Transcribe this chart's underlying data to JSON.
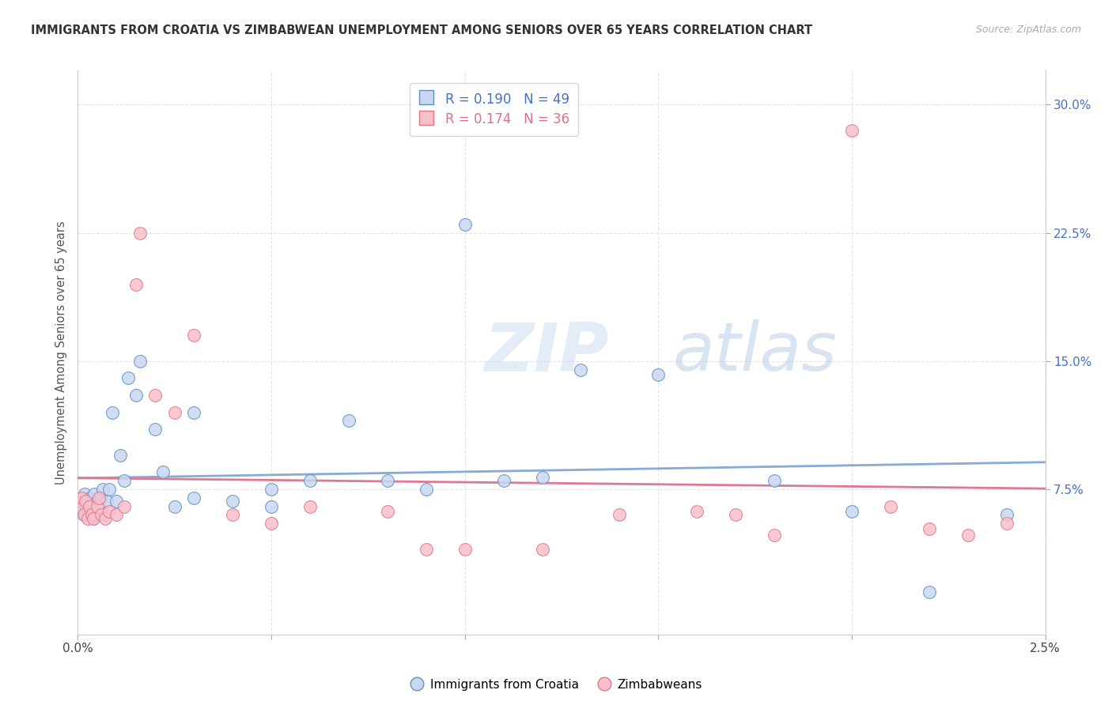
{
  "title": "IMMIGRANTS FROM CROATIA VS ZIMBABWEAN UNEMPLOYMENT AMONG SENIORS OVER 65 YEARS CORRELATION CHART",
  "source": "Source: ZipAtlas.com",
  "ylabel": "Unemployment Among Seniors over 65 years",
  "legend_label_1": "Immigrants from Croatia",
  "legend_label_2": "Zimbabweans",
  "legend_r1": "0.190",
  "legend_n1": "49",
  "legend_r2": "0.174",
  "legend_n2": "36",
  "color_blue_fill": "#c8d8f0",
  "color_blue_edge": "#6090c8",
  "color_pink_fill": "#f8c0cc",
  "color_pink_edge": "#e07888",
  "trendline_blue": "#88aad8",
  "trendline_pink": "#e07890",
  "xlim": [
    0.0,
    0.025
  ],
  "ylim": [
    -0.01,
    0.32
  ],
  "background_color": "#ffffff",
  "grid_color": "#dde6f0",
  "marker_size": 130,
  "croatia_x": [
    5e-05,
    0.0001,
    0.00012,
    0.00015,
    0.00018,
    0.0002,
    0.00022,
    0.00025,
    0.0003,
    0.00032,
    0.00035,
    0.0004,
    0.00042,
    0.00045,
    0.0005,
    0.00055,
    0.0006,
    0.00065,
    0.0007,
    0.00075,
    0.0008,
    0.0009,
    0.001,
    0.0011,
    0.0012,
    0.0013,
    0.0015,
    0.0016,
    0.002,
    0.0022,
    0.0025,
    0.003,
    0.003,
    0.004,
    0.005,
    0.005,
    0.006,
    0.007,
    0.008,
    0.009,
    0.01,
    0.011,
    0.012,
    0.013,
    0.015,
    0.018,
    0.02,
    0.022,
    0.024
  ],
  "croatia_y": [
    0.065,
    0.062,
    0.068,
    0.06,
    0.072,
    0.06,
    0.065,
    0.068,
    0.062,
    0.07,
    0.065,
    0.058,
    0.072,
    0.06,
    0.068,
    0.065,
    0.07,
    0.075,
    0.06,
    0.068,
    0.075,
    0.12,
    0.068,
    0.095,
    0.08,
    0.14,
    0.13,
    0.15,
    0.11,
    0.085,
    0.065,
    0.12,
    0.07,
    0.068,
    0.065,
    0.075,
    0.08,
    0.115,
    0.08,
    0.075,
    0.23,
    0.08,
    0.082,
    0.145,
    0.142,
    0.08,
    0.062,
    0.015,
    0.06
  ],
  "zimb_x": [
    5e-05,
    0.0001,
    0.00015,
    0.0002,
    0.00025,
    0.0003,
    0.00035,
    0.0004,
    0.0005,
    0.00055,
    0.0006,
    0.0007,
    0.0008,
    0.001,
    0.0012,
    0.0015,
    0.0016,
    0.002,
    0.0025,
    0.003,
    0.004,
    0.005,
    0.006,
    0.008,
    0.009,
    0.01,
    0.012,
    0.014,
    0.016,
    0.017,
    0.018,
    0.02,
    0.021,
    0.022,
    0.023,
    0.024
  ],
  "zimb_y": [
    0.065,
    0.07,
    0.06,
    0.068,
    0.058,
    0.065,
    0.06,
    0.058,
    0.065,
    0.07,
    0.06,
    0.058,
    0.062,
    0.06,
    0.065,
    0.195,
    0.225,
    0.13,
    0.12,
    0.165,
    0.06,
    0.055,
    0.065,
    0.062,
    0.04,
    0.04,
    0.04,
    0.06,
    0.062,
    0.06,
    0.048,
    0.285,
    0.065,
    0.052,
    0.048,
    0.055
  ]
}
